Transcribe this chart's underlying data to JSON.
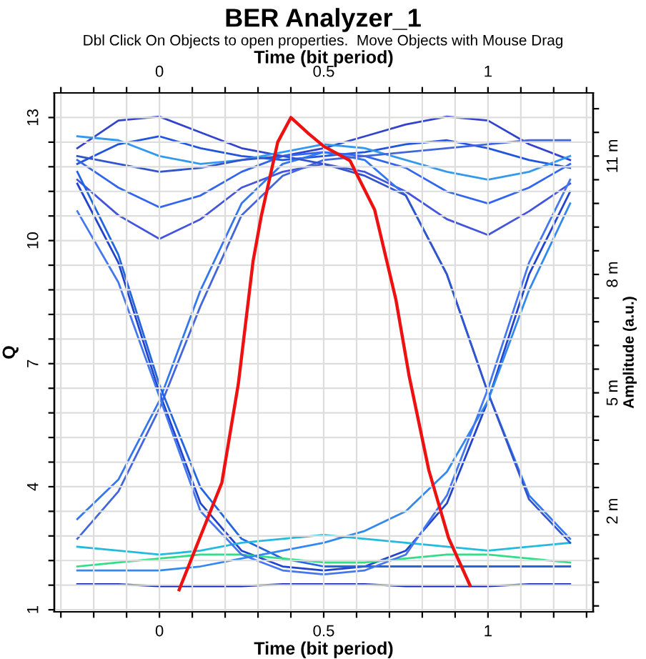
{
  "chart_data": {
    "type": "line",
    "title": "BER Analyzer_1",
    "subtitle": "Dbl Click On Objects to open properties.  Move Objects with Mouse Drag",
    "xlabel": "Time (bit period)",
    "x2label": "Time (bit period)",
    "ylabel": "Q",
    "y2label": "Amplitude (a.u.)",
    "xlim": [
      -0.32,
      1.32
    ],
    "x2lim": [
      -0.32,
      1.32
    ],
    "xticks": [
      {
        "value": -0.3,
        "label": null
      },
      {
        "value": -0.2,
        "label": null
      },
      {
        "value": -0.1,
        "label": null
      },
      0,
      {
        "value": 0.1,
        "label": null
      },
      {
        "value": 0.2,
        "label": null
      },
      {
        "value": 0.3,
        "label": null
      },
      {
        "value": 0.4,
        "label": null
      },
      0.5,
      {
        "value": 0.6,
        "label": null
      },
      {
        "value": 0.7,
        "label": null
      },
      {
        "value": 0.8,
        "label": null
      },
      {
        "value": 0.9,
        "label": null
      },
      1,
      {
        "value": 1.1,
        "label": null
      },
      {
        "value": 1.2,
        "label": null
      },
      {
        "value": 1.3,
        "label": null
      }
    ],
    "x2ticks": [
      {
        "value": -0.3,
        "label": null
      },
      {
        "value": -0.2,
        "label": null
      },
      {
        "value": -0.1,
        "label": null
      },
      0,
      {
        "value": 0.1,
        "label": null
      },
      {
        "value": 0.2,
        "label": null
      },
      {
        "value": 0.3,
        "label": null
      },
      {
        "value": 0.4,
        "label": null
      },
      0.5,
      {
        "value": 0.6,
        "label": null
      },
      {
        "value": 0.7,
        "label": null
      },
      {
        "value": 0.8,
        "label": null
      },
      {
        "value": 0.9,
        "label": null
      },
      1,
      {
        "value": 1.1,
        "label": null
      },
      {
        "value": 1.2,
        "label": null
      },
      {
        "value": 1.3,
        "label": null
      }
    ],
    "ylim": [
      0.95,
      13.6
    ],
    "yticks": [
      1,
      {
        "value": 1.6,
        "label": null
      },
      {
        "value": 2.2,
        "label": null
      },
      {
        "value": 2.8,
        "label": null
      },
      {
        "value": 3.4,
        "label": null
      },
      4,
      {
        "value": 4.6,
        "label": null
      },
      {
        "value": 5.2,
        "label": null
      },
      {
        "value": 5.8,
        "label": null
      },
      {
        "value": 6.4,
        "label": null
      },
      7,
      {
        "value": 7.6,
        "label": null
      },
      {
        "value": 8.2,
        "label": null
      },
      {
        "value": 8.8,
        "label": null
      },
      {
        "value": 9.4,
        "label": null
      },
      10,
      {
        "value": 10.6,
        "label": null
      },
      {
        "value": 11.2,
        "label": null
      },
      {
        "value": 11.8,
        "label": null
      },
      {
        "value": 12.4,
        "label": null
      },
      13
    ],
    "y2lim": [
      -0.55,
      12.6
    ],
    "y2ticks": [
      {
        "value": -0.4,
        "label": null
      },
      {
        "value": 0.2,
        "label": null
      },
      {
        "value": 0.8,
        "label": null
      },
      {
        "value": 1.4,
        "label": null
      },
      {
        "value": 2,
        "label": "2 m"
      },
      {
        "value": 2.6,
        "label": null
      },
      {
        "value": 3.2,
        "label": null
      },
      {
        "value": 3.8,
        "label": null
      },
      {
        "value": 4.4,
        "label": null
      },
      {
        "value": 5,
        "label": "5 m"
      },
      {
        "value": 5.6,
        "label": null
      },
      {
        "value": 6.2,
        "label": null
      },
      {
        "value": 6.8,
        "label": null
      },
      {
        "value": 7.4,
        "label": null
      },
      {
        "value": 8,
        "label": "8 m"
      },
      {
        "value": 8.6,
        "label": null
      },
      {
        "value": 9.2,
        "label": null
      },
      {
        "value": 9.8,
        "label": null
      },
      {
        "value": 10.4,
        "label": null
      },
      {
        "value": 11,
        "label": "11 m"
      },
      {
        "value": 11.6,
        "label": null
      },
      {
        "value": 12.2,
        "label": null
      }
    ],
    "grid": true,
    "x": [
      -0.25,
      -0.125,
      0,
      0.125,
      0.25,
      0.375,
      0.5,
      0.625,
      0.75,
      0.875,
      1,
      1.125,
      1.25
    ],
    "series": [
      {
        "axis": "y2",
        "color": "#3344cc",
        "values": [
          11.2,
          11.9,
          12.0,
          11.6,
          11.2,
          11.0,
          11.2,
          11.5,
          11.8,
          12.0,
          11.9,
          11.3,
          10.9
        ]
      },
      {
        "axis": "y2",
        "color": "#2255dd",
        "values": [
          10.8,
          11.3,
          11.5,
          11.2,
          11.0,
          10.9,
          11.0,
          11.1,
          11.3,
          11.4,
          11.2,
          10.9,
          10.7
        ]
      },
      {
        "axis": "y2",
        "color": "#4455dd",
        "values": [
          10.4,
          9.5,
          8.9,
          9.4,
          10.2,
          10.6,
          10.8,
          10.6,
          10.1,
          9.4,
          9.0,
          9.6,
          10.3
        ]
      },
      {
        "axis": "y2",
        "color": "#3366ee",
        "values": [
          10.9,
          10.2,
          9.7,
          10.0,
          10.6,
          11.0,
          11.1,
          11.0,
          10.7,
          10.1,
          9.8,
          10.2,
          10.8
        ]
      },
      {
        "axis": "y2",
        "color": "#3399ee",
        "values": [
          11.5,
          11.4,
          11.0,
          10.8,
          10.9,
          11.1,
          11.3,
          11.2,
          10.9,
          10.6,
          10.4,
          10.6,
          11.0
        ]
      },
      {
        "axis": "y2",
        "color": "#2244cc",
        "values": [
          10.3,
          8.3,
          5.0,
          2.2,
          1.0,
          0.6,
          0.5,
          0.6,
          1.0,
          2.2,
          4.8,
          8.0,
          10.1
        ]
      },
      {
        "axis": "y2",
        "color": "#3377ee",
        "values": [
          1.8,
          2.8,
          4.8,
          7.6,
          9.8,
          10.8,
          11.1,
          10.9,
          10.0,
          8.0,
          5.0,
          2.4,
          1.3
        ]
      },
      {
        "axis": "y2",
        "color": "#4466dd",
        "values": [
          1.3,
          2.5,
          4.6,
          7.2,
          9.5,
          10.5,
          10.9,
          11.0,
          11.1,
          11.2,
          11.3,
          11.4,
          11.4
        ]
      },
      {
        "axis": "y2",
        "color": "#2266dd",
        "values": [
          10.6,
          8.5,
          5.2,
          2.6,
          1.3,
          0.8,
          0.6,
          0.6,
          0.6,
          0.6,
          0.6,
          0.6,
          0.6
        ]
      },
      {
        "axis": "y2",
        "color": "#33dd88",
        "values": [
          0.6,
          0.7,
          0.8,
          0.9,
          0.9,
          0.8,
          0.7,
          0.7,
          0.8,
          0.9,
          0.9,
          0.8,
          0.7
        ]
      },
      {
        "axis": "y2",
        "color": "#1122aa",
        "values": [
          0.15,
          0.15,
          0.1,
          0.1,
          0.1,
          0.15,
          0.15,
          0.15,
          0.1,
          0.1,
          0.1,
          0.15,
          0.15
        ]
      },
      {
        "axis": "y2",
        "color": "#22bbdd",
        "values": [
          1.1,
          1.0,
          0.9,
          1.0,
          1.2,
          1.3,
          1.4,
          1.3,
          1.2,
          1.1,
          1.0,
          1.1,
          1.2
        ]
      },
      {
        "axis": "y2",
        "color": "#3355cc",
        "values": [
          11.0,
          10.8,
          10.6,
          10.7,
          10.9,
          11.0,
          10.8,
          10.5,
          10.0,
          8.0,
          5.0,
          2.3,
          1.2
        ]
      },
      {
        "axis": "y2",
        "color": "#3388ee",
        "values": [
          0.5,
          0.5,
          0.5,
          0.6,
          0.8,
          1.0,
          1.2,
          1.5,
          2.0,
          3.0,
          4.8,
          7.6,
          9.8
        ]
      },
      {
        "axis": "y2",
        "color": "#4477ee",
        "values": [
          9.6,
          7.8,
          4.9,
          2.0,
          0.9,
          0.5,
          0.4,
          0.5,
          0.9,
          2.4,
          5.1,
          8.3,
          10.4
        ]
      },
      {
        "color": "#ee1111",
        "x": [
          0.06,
          0.19,
          0.24,
          0.285,
          0.31,
          0.36,
          0.4,
          0.455,
          0.5,
          0.58,
          0.655,
          0.72,
          0.76,
          0.82,
          0.88,
          0.945
        ],
        "values": [
          1.49,
          4.1,
          6.5,
          9.5,
          10.6,
          12.4,
          13.0,
          12.6,
          12.3,
          11.95,
          10.75,
          8.55,
          6.7,
          4.4,
          2.75,
          1.6
        ]
      }
    ]
  }
}
